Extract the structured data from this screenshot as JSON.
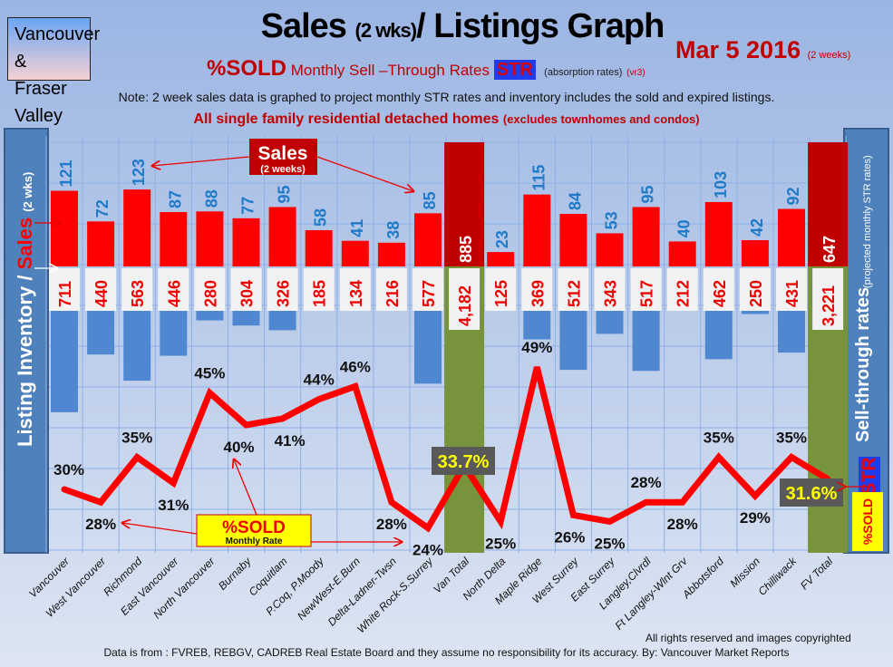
{
  "header": {
    "region_line1": "Vancouver &",
    "region_line2": "Fraser Valley",
    "title_main": "Sales",
    "title_paren": "(2 wks)",
    "title_rest": "/ Listings Graph",
    "date": "Mar 5 2016",
    "date_note": "(2 weeks)",
    "sub_sold": "%SOLD",
    "sub_text": "Monthly Sell –Through Rates",
    "sub_str": "STR",
    "sub_abs": "(absorption rates)",
    "sub_ver": "(vr3)",
    "note": "Note: 2 week sales data is graphed to project monthly STR rates and inventory includes the sold and expired listings.",
    "note2_main": "All single family residential detached homes",
    "note2_paren": "(excludes townhomes and condos)"
  },
  "left_axis": {
    "inventory": "Listing Inventory /",
    "sales": "Sales",
    "paren": "(2 wks)"
  },
  "right_axis": {
    "title": "Sell-through rates",
    "paren": "(projected monthly STR rates)",
    "str": "STR",
    "sold": "%SOLD"
  },
  "annotations": {
    "sales_title": "Sales",
    "sales_sub": "(2 weeks)",
    "sold_title": "%SOLD",
    "sold_sub": "Monthly Rate"
  },
  "colors": {
    "sales": "#ff0000",
    "inventory": "#4f88d0",
    "total": "#77933c",
    "total_sales": "#c00000",
    "line": "#ff0000",
    "sales_label": "#1f7bc8"
  },
  "chart_data": {
    "type": "bar+line",
    "title": "Sales (2 wks)/ Listings Graph",
    "categories": [
      "Vancouver",
      "West Vancouver",
      "Richmond",
      "East Vancouver",
      "North Vancouver",
      "Burnaby",
      "Coquitlam",
      "P.Coq, P.Moody",
      "NewWest-E.Burn",
      "Delta-Ladner-Twsn",
      "White Rock-S.Surrey",
      "Van Total",
      "North Delta",
      "Maple Ridge",
      "West Surrey",
      "East Surrey",
      "Langley,Clvrdl",
      "Ft Langley-Wlnt Grv",
      "Abbotsford",
      "Mission",
      "Chilliwack",
      "FV Total"
    ],
    "totals": [
      11,
      21
    ],
    "series": [
      {
        "name": "Sales (2 weeks)",
        "values": [
          121,
          72,
          123,
          87,
          88,
          77,
          95,
          58,
          41,
          38,
          85,
          885,
          23,
          115,
          84,
          53,
          95,
          40,
          103,
          42,
          92,
          647
        ]
      },
      {
        "name": "Listing Inventory",
        "values": [
          711,
          440,
          563,
          446,
          280,
          304,
          326,
          185,
          134,
          216,
          577,
          4182,
          125,
          369,
          512,
          343,
          517,
          212,
          462,
          250,
          431,
          3221
        ]
      },
      {
        "name": "%SOLD Monthly Rate",
        "values": [
          30,
          28,
          35,
          31,
          45,
          40,
          41,
          44,
          46,
          28,
          24,
          33.7,
          25,
          49,
          26,
          25,
          28,
          28,
          35,
          29,
          35,
          31.6
        ]
      }
    ],
    "inventory_labels": [
      "711",
      "440",
      "563",
      "446",
      "280",
      "304",
      "326",
      "185",
      "134",
      "216",
      "577",
      "4,182",
      "125",
      "369",
      "512",
      "343",
      "517",
      "212",
      "462",
      "250",
      "431",
      "3,221"
    ],
    "rate_labels": [
      "30%",
      "28%",
      "35%",
      "31%",
      "45%",
      "40%",
      "41%",
      "44%",
      "46%",
      "28%",
      "24%",
      "33.7%",
      "25%",
      "49%",
      "26%",
      "25%",
      "28%",
      "28%",
      "35%",
      "29%",
      "35%",
      "31.6%"
    ]
  },
  "footer": {
    "copyright": "All rights reserved and  images copyrighted",
    "source": "Data is from : FVREB, REBGV, CADREB Real Estate Board and they assume no responsibility for its accuracy. By: Vancouver Market Reports"
  }
}
